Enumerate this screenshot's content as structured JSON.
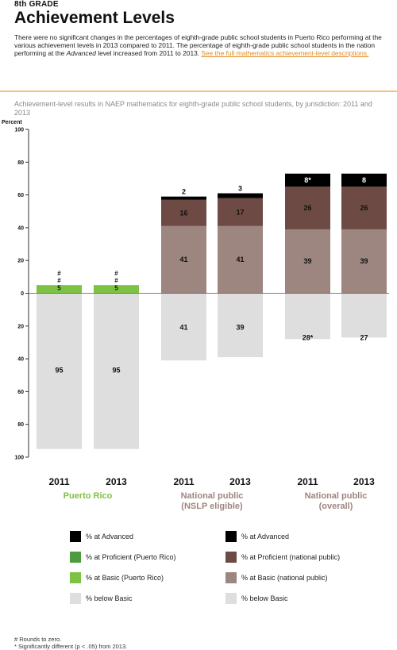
{
  "header": {
    "grade": "8th GRADE",
    "title": "Achievement Levels",
    "intro_pre": "There were no significant changes in the percentages of eighth-grade public school students in Puerto Rico performing at the various achievement levels in 2013 compared to 2011. The percentage of eighth-grade public school students in the nation performing at the ",
    "intro_em": "Advanced",
    "intro_post": " level increased from 2011 to 2013. ",
    "intro_link": "See the full mathematics achievement-level descriptions."
  },
  "chart_data": {
    "type": "bar",
    "title": "Achievement-level results in NAEP mathematics for eighth-grade public school students, by jurisdiction: 2011 and 2013",
    "ylabel": "Percent",
    "ylim": [
      -100,
      100
    ],
    "yticks": [
      "100",
      "80",
      "60",
      "40",
      "20",
      "0",
      "20",
      "40",
      "60",
      "80",
      "100"
    ],
    "colors": {
      "pr_advanced": "#000000",
      "pr_proficient": "#4e9a3e",
      "pr_basic": "#7dc242",
      "nat_advanced": "#000000",
      "nat_proficient": "#6e4a44",
      "nat_basic": "#9d8580",
      "below_basic": "#dedede"
    },
    "groups": [
      {
        "name_line1": "Puerto Rico",
        "name_line2": "",
        "name_color": "#7dc242",
        "palette": "pr",
        "bars": [
          {
            "year": "2011",
            "advanced": 0,
            "proficient": 0,
            "basic": 5,
            "below_basic": 95,
            "advanced_label": "#",
            "proficient_label": "#",
            "basic_label": "5",
            "below_label": "95"
          },
          {
            "year": "2013",
            "advanced": 0,
            "proficient": 0,
            "basic": 5,
            "below_basic": 95,
            "advanced_label": "#",
            "proficient_label": "#",
            "basic_label": "5",
            "below_label": "95"
          }
        ]
      },
      {
        "name_line1": "National public",
        "name_line2": "(NSLP eligible)",
        "name_color": "#9d8580",
        "palette": "nat",
        "bars": [
          {
            "year": "2011",
            "advanced": 2,
            "proficient": 16,
            "basic": 41,
            "below_basic": 41,
            "advanced_label": "2",
            "proficient_label": "16",
            "basic_label": "41",
            "below_label": "41"
          },
          {
            "year": "2013",
            "advanced": 3,
            "proficient": 17,
            "basic": 41,
            "below_basic": 39,
            "advanced_label": "3",
            "proficient_label": "17",
            "basic_label": "41",
            "below_label": "39"
          }
        ]
      },
      {
        "name_line1": "National public",
        "name_line2": "(overall)",
        "name_color": "#9d8580",
        "palette": "nat",
        "bars": [
          {
            "year": "2011",
            "advanced": 8,
            "proficient": 26,
            "basic": 39,
            "below_basic": 28,
            "advanced_label": "8*",
            "proficient_label": "26",
            "basic_label": "39",
            "below_label": "28*"
          },
          {
            "year": "2013",
            "advanced": 8,
            "proficient": 26,
            "basic": 39,
            "below_basic": 27,
            "advanced_label": "8",
            "proficient_label": "26",
            "basic_label": "39",
            "below_label": "27"
          }
        ]
      }
    ],
    "legend": [
      {
        "label": "% at Advanced",
        "color": "#000000"
      },
      {
        "label": "% at Advanced",
        "color": "#000000"
      },
      {
        "label": "% at Proficient (Puerto Rico)",
        "color": "#4e9a3e"
      },
      {
        "label": "% at Proficient (national public)",
        "color": "#6e4a44"
      },
      {
        "label": "% at Basic (Puerto Rico)",
        "color": "#7dc242"
      },
      {
        "label": "% at Basic (national public)",
        "color": "#9d8580"
      },
      {
        "label": "% below Basic",
        "color": "#dedede"
      },
      {
        "label": "% below Basic",
        "color": "#dedede"
      }
    ]
  },
  "footnotes": {
    "rounds": "# Rounds to zero.",
    "sig": "* Significantly different (p < .05) from 2013."
  }
}
